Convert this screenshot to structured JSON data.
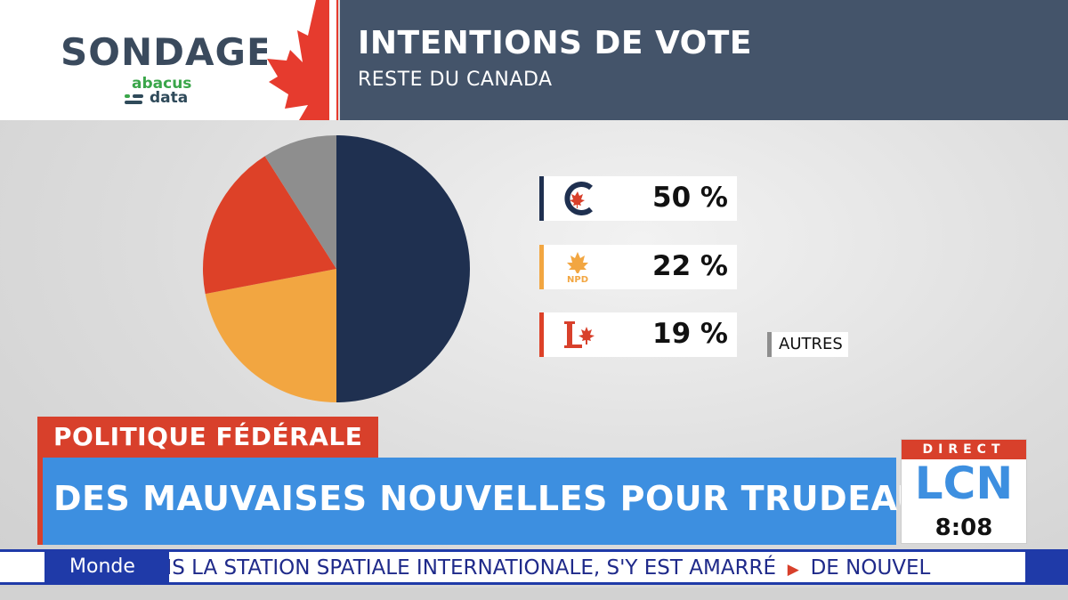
{
  "header": {
    "sondage_label": "SONDAGE",
    "pollster_logo": {
      "top": "abacus",
      "bottom": "data"
    },
    "title": "INTENTIONS DE VOTE",
    "subtitle": "RESTE DU CANADA"
  },
  "chart_data": {
    "type": "pie",
    "title": "INTENTIONS DE VOTE",
    "subtitle": "RESTE DU CANADA",
    "slices": [
      {
        "icon": "conservative-logo-icon",
        "value": 50,
        "label": "50 %",
        "color": "#1f3050"
      },
      {
        "icon": "ndp-logo-icon",
        "value": 22,
        "label": "22 %",
        "color": "#f2a641"
      },
      {
        "icon": "liberal-logo-icon",
        "value": 19,
        "label": "19 %",
        "color": "#dd4128"
      },
      {
        "name": "AUTRES",
        "value": 9,
        "color": "#8e8e8e"
      }
    ],
    "legend_placement": "right"
  },
  "legend": {
    "ndp_logo_text": "NPD",
    "others_label": "AUTRES"
  },
  "lower_third": {
    "category": "POLITIQUE FÉDÉRALE",
    "headline": "DES MAUVAISES NOUVELLES POUR TRUDEAU"
  },
  "network": {
    "live_label": "DIRECT",
    "logo": "LCN",
    "time": "8:08"
  },
  "ticker": {
    "section": "Monde",
    "text_main": "NS LA STATION SPATIALE INTERNATIONALE, S'Y EST AMARRÉ",
    "text_next": "DE NOUVEL"
  },
  "colors": {
    "header_bg": "#44546a",
    "accent_red": "#d8402b",
    "headline_blue": "#3d8fe0",
    "ticker_blue": "#1f3aa8"
  }
}
